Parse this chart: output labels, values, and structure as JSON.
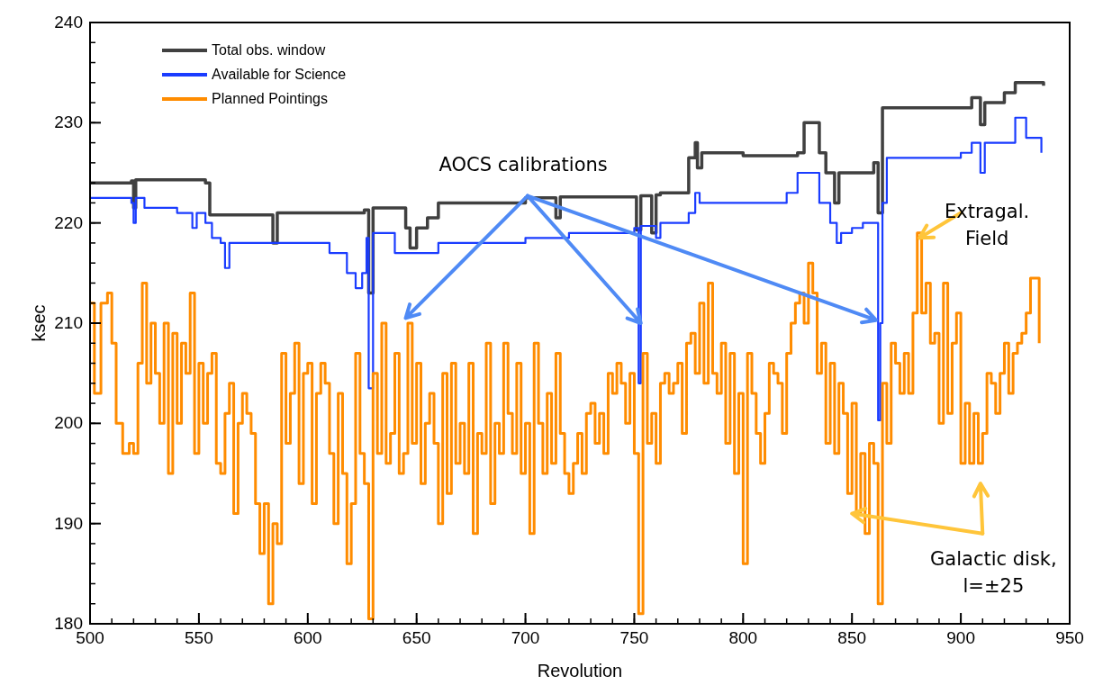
{
  "chart_data": {
    "type": "step",
    "xlabel": "Revolution",
    "ylabel": "ksec",
    "xlim": [
      500,
      950
    ],
    "ylim": [
      180,
      240
    ],
    "xticks": [
      500,
      550,
      600,
      650,
      700,
      750,
      800,
      850,
      900,
      950
    ],
    "yticks": [
      180,
      190,
      200,
      210,
      220,
      230,
      240
    ],
    "legend": "top left",
    "grid": false,
    "line_style": "solid",
    "marker": "none",
    "annotations": [
      {
        "text": "AOCS calibrations",
        "x": 753,
        "y": 210
      },
      {
        "text": "Extragal.\nField",
        "x": 881,
        "y": 218.5
      },
      {
        "text": "Galactic disk,\nl=±25",
        "x": 850,
        "y": 191
      }
    ],
    "series": [
      {
        "name": "Total obs. window",
        "color": "#404040",
        "x": [
          500,
          519,
          520,
          521,
          553,
          555,
          584,
          586,
          626,
          628,
          630,
          645,
          647,
          650,
          655,
          660,
          700,
          714,
          716,
          750,
          751,
          753,
          758,
          760,
          762,
          770,
          775,
          778,
          779,
          781,
          790,
          800,
          825,
          828,
          835,
          838,
          842,
          844,
          850,
          860,
          862,
          864,
          900,
          905,
          909,
          911,
          920,
          925,
          938
        ],
        "values": [
          224,
          224.2,
          221.5,
          224.3,
          224,
          220.8,
          218,
          221,
          221.3,
          213,
          221.5,
          219.5,
          217.5,
          219.5,
          220.5,
          222,
          222.5,
          220.5,
          222.6,
          222.6,
          219.3,
          222.7,
          219,
          222.8,
          223,
          223,
          226.5,
          228,
          225.5,
          227,
          227,
          226.7,
          227,
          230,
          227,
          225,
          222,
          225,
          225,
          226,
          221,
          231.5,
          231.5,
          232.5,
          229.8,
          232,
          233,
          234,
          233.7
        ]
      },
      {
        "name": "Available for Science",
        "color": "#1a3cff",
        "x": [
          500,
          519,
          520,
          521,
          525,
          540,
          547,
          549,
          553,
          556,
          560,
          562,
          564,
          575,
          600,
          610,
          618,
          622,
          625,
          627,
          628,
          630,
          640,
          660,
          700,
          720,
          750,
          752,
          753,
          755,
          760,
          762,
          765,
          775,
          778,
          780,
          790,
          800,
          820,
          825,
          835,
          840,
          843,
          845,
          850,
          855,
          860,
          862,
          863,
          864,
          866,
          900,
          905,
          909,
          911,
          915,
          925,
          930,
          937
        ],
        "values": [
          222.5,
          222,
          220,
          222.5,
          221.5,
          221,
          219.5,
          221,
          220,
          218.5,
          218,
          215.5,
          218,
          218,
          218,
          217,
          215,
          213.5,
          215,
          218.5,
          203.5,
          219,
          217,
          218,
          218.5,
          219,
          219.5,
          204,
          219.7,
          219.7,
          218.5,
          220,
          220,
          221,
          223,
          222,
          222,
          222,
          223,
          225,
          222,
          220,
          218,
          219,
          219.5,
          220,
          220,
          200.3,
          210,
          222,
          226.5,
          227,
          228,
          225,
          228,
          228,
          230.5,
          228.5,
          227
        ]
      },
      {
        "name": "Planned Pointings",
        "color": "#ff8c00",
        "x": [
          500,
          502,
          505,
          508,
          510,
          512,
          515,
          518,
          520,
          522,
          524,
          526,
          528,
          530,
          532,
          534,
          536,
          538,
          540,
          542,
          544,
          546,
          548,
          550,
          552,
          554,
          556,
          558,
          560,
          562,
          564,
          566,
          568,
          570,
          572,
          574,
          576,
          578,
          580,
          582,
          584,
          586,
          588,
          590,
          592,
          594,
          596,
          598,
          600,
          602,
          604,
          606,
          608,
          610,
          612,
          614,
          616,
          618,
          620,
          622,
          624,
          626,
          628,
          630,
          632,
          634,
          636,
          638,
          640,
          642,
          644,
          646,
          648,
          650,
          652,
          654,
          656,
          658,
          660,
          662,
          664,
          666,
          668,
          670,
          672,
          674,
          676,
          678,
          680,
          682,
          684,
          686,
          688,
          690,
          692,
          694,
          696,
          698,
          700,
          702,
          704,
          706,
          708,
          710,
          712,
          714,
          716,
          718,
          720,
          722,
          724,
          726,
          728,
          730,
          732,
          734,
          736,
          738,
          740,
          742,
          744,
          746,
          748,
          750,
          752,
          754,
          756,
          758,
          760,
          762,
          764,
          766,
          768,
          770,
          772,
          774,
          776,
          778,
          780,
          782,
          784,
          786,
          788,
          790,
          792,
          794,
          796,
          798,
          800,
          802,
          804,
          806,
          808,
          810,
          812,
          814,
          816,
          818,
          820,
          822,
          824,
          826,
          828,
          830,
          832,
          834,
          836,
          838,
          840,
          842,
          844,
          846,
          848,
          850,
          852,
          854,
          856,
          858,
          860,
          862,
          864,
          866,
          868,
          870,
          872,
          874,
          876,
          878,
          880,
          882,
          884,
          886,
          888,
          890,
          892,
          894,
          896,
          898,
          900,
          902,
          904,
          906,
          908,
          910,
          912,
          914,
          916,
          918,
          920,
          922,
          924,
          926,
          928,
          930,
          932,
          936
        ],
        "values": [
          212,
          203,
          212,
          213,
          208,
          200,
          197,
          198,
          197,
          206,
          214,
          204,
          210,
          205,
          200,
          210,
          195,
          209,
          200,
          208,
          205,
          213,
          197,
          206,
          200,
          205,
          207,
          196,
          195,
          201,
          204,
          191,
          200,
          203,
          201,
          199,
          192,
          187,
          192,
          182,
          190,
          188,
          207,
          198,
          203,
          208,
          194,
          205,
          206,
          192,
          203,
          206,
          204,
          197,
          190,
          203,
          195,
          186,
          192,
          207,
          197,
          194,
          180.5,
          205,
          197,
          210,
          196,
          199,
          207,
          195,
          197,
          210,
          198,
          206,
          194,
          200,
          203,
          198,
          190,
          205,
          193,
          206,
          196,
          200,
          195,
          206,
          189,
          199,
          197,
          208,
          192,
          200,
          197,
          208,
          201,
          197,
          206,
          195,
          200,
          189,
          208,
          200,
          195,
          203,
          196,
          207,
          199,
          195,
          193,
          196,
          199,
          195,
          201,
          202,
          198,
          201,
          197,
          205,
          203,
          206,
          204,
          200,
          205,
          197,
          181,
          207,
          198,
          201,
          196,
          204,
          205,
          203,
          204,
          206,
          199,
          208,
          209,
          205,
          212,
          204,
          214,
          205,
          203,
          208,
          198,
          207,
          195,
          203,
          186,
          207,
          203,
          199,
          196,
          201,
          206,
          205,
          204,
          199,
          207,
          210,
          212,
          213,
          210,
          216,
          213,
          205,
          208,
          198,
          206,
          197,
          204,
          201,
          193,
          202,
          191,
          197,
          189,
          198,
          196,
          182,
          204,
          198,
          208,
          206,
          203,
          207,
          203,
          211,
          219,
          211,
          214,
          208,
          209,
          200,
          214,
          201,
          208,
          211,
          196,
          202,
          196,
          201,
          196,
          199,
          205,
          204,
          201,
          205,
          208,
          203,
          207,
          208,
          209,
          211,
          214.5,
          208
        ]
      }
    ]
  }
}
